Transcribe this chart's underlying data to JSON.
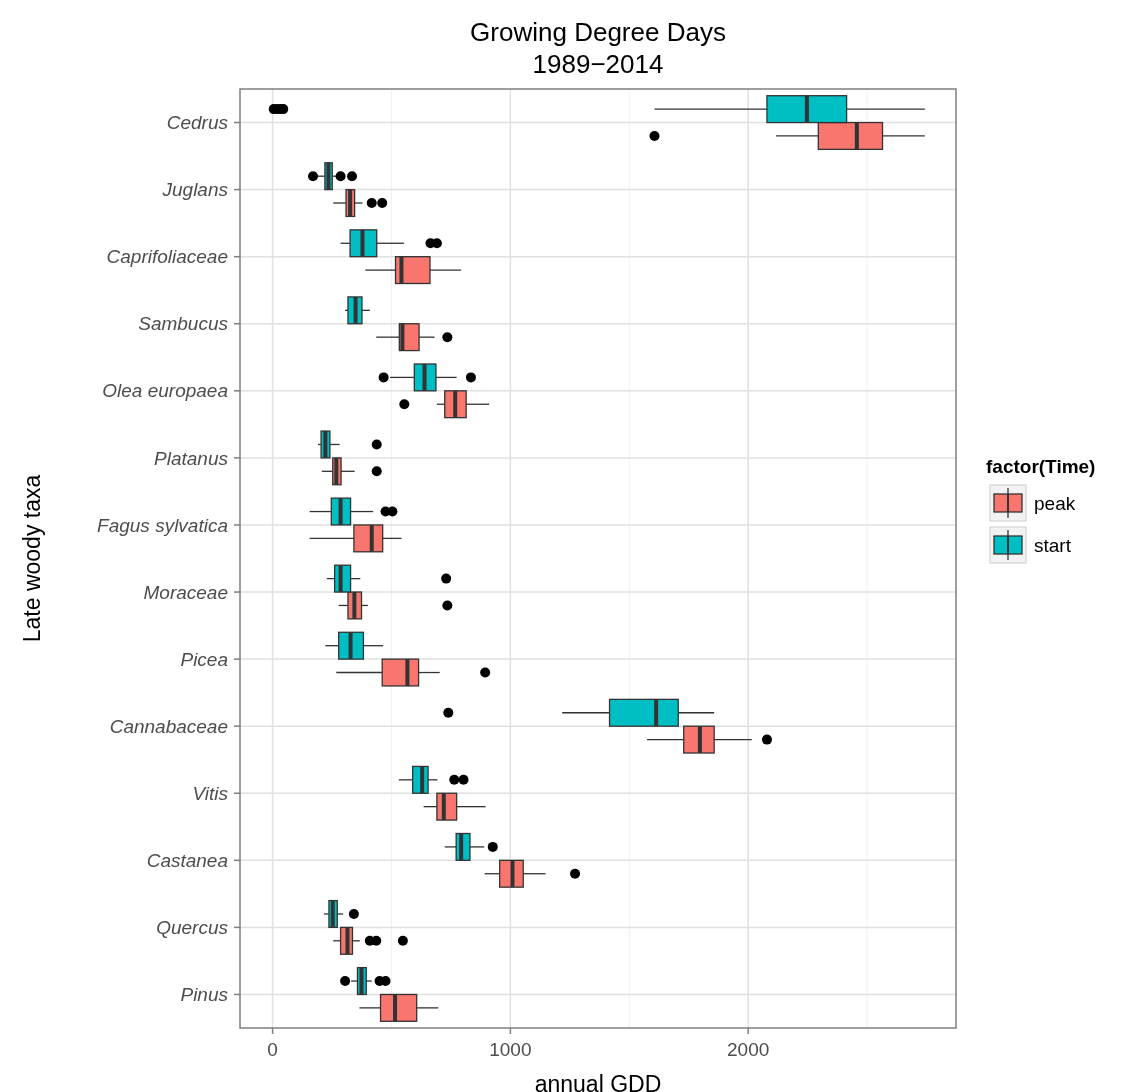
{
  "chart_data": {
    "type": "box",
    "orientation": "horizontal",
    "title": "Growing Degree Days",
    "subtitle": "1989−2014",
    "xlabel": "annual GDD",
    "ylabel": "Late woody taxa",
    "legend_title": "factor(Time)",
    "legend": "right",
    "grid": true,
    "categories": [
      "Cedrus",
      "Juglans",
      "Caprifoliaceae",
      "Sambucus",
      "Olea europaea",
      "Platanus",
      "Fagus sylvatica",
      "Moraceae",
      "Picea",
      "Cannabaceae",
      "Vitis",
      "Castanea",
      "Quercus",
      "Pinus"
    ],
    "xlim": [
      -137,
      2874
    ],
    "xticks": [
      0,
      {
        "value": 500,
        "label": null
      },
      1000,
      {
        "value": 1500,
        "label": null
      },
      2000,
      {
        "value": 2500,
        "label": null
      }
    ],
    "series": [
      {
        "name": "peak",
        "color": "#f8766d",
        "boxes": [
          {
            "low": 2117,
            "q1": 2295,
            "median": 2457,
            "q3": 2565,
            "high": 2743,
            "outliers": [
              1606
            ]
          },
          {
            "low": 255,
            "q1": 309,
            "median": 326,
            "q3": 345,
            "high": 378,
            "outliers": [
              417,
              461
            ]
          },
          {
            "low": 390,
            "q1": 517,
            "median": 542,
            "q3": 662,
            "high": 793
          },
          {
            "low": 436,
            "q1": 533,
            "median": 546,
            "q3": 616,
            "high": 681,
            "outliers": [
              735
            ]
          },
          {
            "low": 691,
            "q1": 724,
            "median": 768,
            "q3": 814,
            "high": 911,
            "outliers": [
              554
            ]
          },
          {
            "low": 207,
            "q1": 253,
            "median": 268,
            "q3": 288,
            "high": 345,
            "outliers": [
              438
            ]
          },
          {
            "low": 156,
            "q1": 342,
            "median": 417,
            "q3": 463,
            "high": 542
          },
          {
            "low": 278,
            "q1": 317,
            "median": 344,
            "q3": 374,
            "high": 401,
            "outliers": [
              735
            ]
          },
          {
            "low": 268,
            "q1": 461,
            "median": 567,
            "q3": 614,
            "high": 703,
            "outliers": [
              894
            ]
          },
          {
            "low": 1575,
            "q1": 1729,
            "median": 1797,
            "q3": 1857,
            "high": 2015,
            "outliers": [
              2079
            ]
          },
          {
            "low": 635,
            "q1": 691,
            "median": 720,
            "q3": 774,
            "high": 896
          },
          {
            "low": 892,
            "q1": 955,
            "median": 1009,
            "q3": 1054,
            "high": 1148,
            "outliers": [
              1272
            ]
          },
          {
            "low": 255,
            "q1": 286,
            "median": 315,
            "q3": 336,
            "high": 367,
            "outliers": [
              409,
              436,
              548
            ]
          },
          {
            "low": 365,
            "q1": 454,
            "median": 515,
            "q3": 606,
            "high": 697
          }
        ]
      },
      {
        "name": "start",
        "color": "#00bfc4",
        "boxes": [
          {
            "low": 1606,
            "q1": 2079,
            "median": 2247,
            "q3": 2414,
            "high": 2743,
            "outliers": [
              5,
              20,
              35,
              45
            ]
          },
          {
            "low": 180,
            "q1": 220,
            "median": 235,
            "q3": 251,
            "high": 270,
            "outliers": [
              170,
              286,
              334
            ]
          },
          {
            "low": 286,
            "q1": 326,
            "median": 378,
            "q3": 438,
            "high": 552,
            "outliers": [
              664,
              691
            ]
          },
          {
            "low": 305,
            "q1": 317,
            "median": 349,
            "q3": 376,
            "high": 409
          },
          {
            "low": 494,
            "q1": 596,
            "median": 639,
            "q3": 687,
            "high": 774,
            "outliers": [
              467,
              834
            ]
          },
          {
            "low": 191,
            "q1": 204,
            "median": 222,
            "q3": 241,
            "high": 282,
            "outliers": [
              438
            ]
          },
          {
            "low": 156,
            "q1": 247,
            "median": 286,
            "q3": 328,
            "high": 423,
            "outliers": [
              475,
              504
            ]
          },
          {
            "low": 228,
            "q1": 261,
            "median": 286,
            "q3": 328,
            "high": 369,
            "outliers": [
              730
            ]
          },
          {
            "low": 222,
            "q1": 278,
            "median": 328,
            "q3": 382,
            "high": 465
          },
          {
            "low": 1218,
            "q1": 1417,
            "median": 1613,
            "q3": 1706,
            "high": 1857,
            "outliers": [
              739
            ]
          },
          {
            "low": 531,
            "q1": 589,
            "median": 629,
            "q3": 654,
            "high": 693,
            "outliers": [
              764,
              803
            ]
          },
          {
            "low": 724,
            "q1": 772,
            "median": 793,
            "q3": 830,
            "high": 890,
            "outliers": [
              926
            ]
          },
          {
            "low": 216,
            "q1": 237,
            "median": 253,
            "q3": 272,
            "high": 297,
            "outliers": [
              342
            ]
          },
          {
            "low": 330,
            "q1": 357,
            "median": 374,
            "q3": 394,
            "high": 417,
            "outliers": [
              305,
              450,
              475
            ]
          }
        ]
      }
    ]
  }
}
